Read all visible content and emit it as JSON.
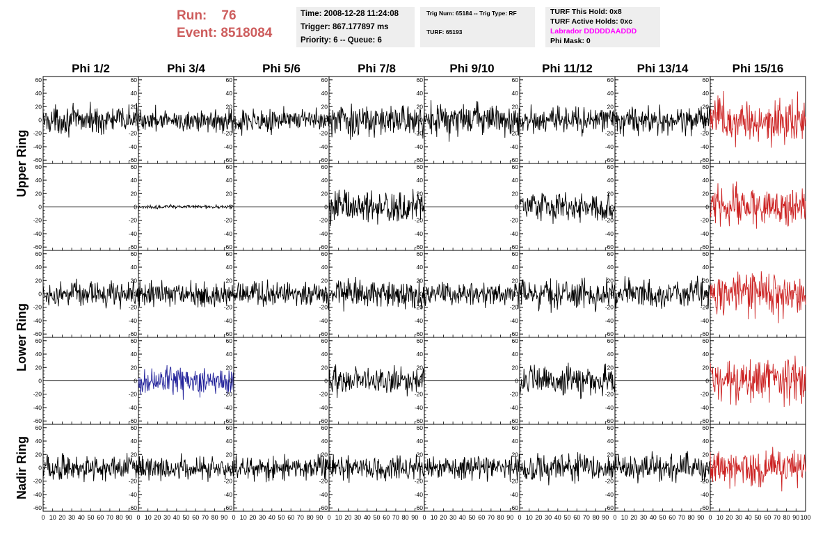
{
  "header": {
    "run_label": "Run:",
    "run_value": "76",
    "event_label": "Event:",
    "event_value": "8518084"
  },
  "info": {
    "time": "Time: 2008-12-28 11:24:08",
    "trigger": "Trigger: 867.177897 ms",
    "priority": "Priority: 6 -- Queue: 6",
    "trig_num": "Trig Num: 65184 -- Trig Type: RF",
    "turf": "TURF: 65193",
    "turf_this_hold": "TURF This Hold: 0x8",
    "turf_active_holds": "TURF Active Holds: 0xc",
    "labrador": "Labrador DDDDDAADDD",
    "phi_mask": "Phi Mask: 0"
  },
  "colors": {
    "header_red": "#cd5c5c",
    "trace_black": "#000000",
    "trace_red": "#cc2222",
    "trace_blue": "#22229a",
    "labrador_magenta": "#ff00ff",
    "info_bg": "#eeeeee"
  },
  "chart_data": {
    "type": "line",
    "columns": [
      "Phi 1/2",
      "Phi 3/4",
      "Phi 5/6",
      "Phi 7/8",
      "Phi 9/10",
      "Phi 11/12",
      "Phi 13/14",
      "Phi 15/16"
    ],
    "rings": [
      {
        "label": "Upper Ring",
        "rows": [
          0,
          1
        ]
      },
      {
        "label": "Lower Ring",
        "rows": [
          2,
          3
        ]
      },
      {
        "label": "Nadir Ring",
        "rows": [
          4
        ]
      }
    ],
    "xlim": [
      0,
      100
    ],
    "ylim": [
      -65,
      65
    ],
    "x_ticks": [
      0,
      10,
      20,
      30,
      40,
      50,
      60,
      70,
      80,
      90,
      100
    ],
    "y_ticks": [
      60,
      40,
      20,
      0,
      -20,
      -40,
      -60
    ],
    "note": "Each cell is a ~100-sample waveform trace; amplitude = approximate RMS level in data units (0 = flat line), color = trace color.",
    "cells": [
      [
        {
          "amp": 14,
          "color": "black"
        },
        {
          "amp": 12,
          "color": "black"
        },
        {
          "amp": 12,
          "color": "black"
        },
        {
          "amp": 17,
          "color": "black"
        },
        {
          "amp": 17,
          "color": "black"
        },
        {
          "amp": 13,
          "color": "black"
        },
        {
          "amp": 14,
          "color": "black"
        },
        {
          "amp": 24,
          "color": "red"
        }
      ],
      [
        {
          "amp": 0,
          "color": "black"
        },
        {
          "amp": 2,
          "color": "black"
        },
        {
          "amp": 0,
          "color": "black"
        },
        {
          "amp": 17,
          "color": "black"
        },
        {
          "amp": 0,
          "color": "black"
        },
        {
          "amp": 16,
          "color": "black"
        },
        {
          "amp": 0,
          "color": "black"
        },
        {
          "amp": 20,
          "color": "red"
        }
      ],
      [
        {
          "amp": 13,
          "color": "black"
        },
        {
          "amp": 13,
          "color": "black"
        },
        {
          "amp": 13,
          "color": "black"
        },
        {
          "amp": 15,
          "color": "black"
        },
        {
          "amp": 12,
          "color": "black"
        },
        {
          "amp": 15,
          "color": "black"
        },
        {
          "amp": 15,
          "color": "black"
        },
        {
          "amp": 22,
          "color": "red"
        }
      ],
      [
        {
          "amp": 0,
          "color": "black"
        },
        {
          "amp": 14,
          "color": "blue"
        },
        {
          "amp": 0,
          "color": "black"
        },
        {
          "amp": 15,
          "color": "black"
        },
        {
          "amp": 0,
          "color": "black"
        },
        {
          "amp": 16,
          "color": "black"
        },
        {
          "amp": 0,
          "color": "black"
        },
        {
          "amp": 24,
          "color": "red"
        }
      ],
      [
        {
          "amp": 13,
          "color": "black"
        },
        {
          "amp": 12,
          "color": "black"
        },
        {
          "amp": 13,
          "color": "black"
        },
        {
          "amp": 13,
          "color": "black"
        },
        {
          "amp": 12,
          "color": "black"
        },
        {
          "amp": 15,
          "color": "black"
        },
        {
          "amp": 14,
          "color": "black"
        },
        {
          "amp": 20,
          "color": "red"
        }
      ]
    ]
  }
}
